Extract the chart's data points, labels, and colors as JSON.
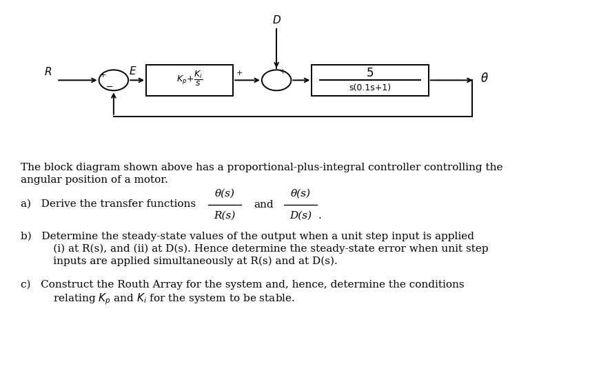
{
  "bg_color": "#ffffff",
  "fig_width": 8.56,
  "fig_height": 5.54,
  "dpi": 100,
  "diagram": {
    "R_label": "R",
    "E_label": "E",
    "D_label": "D",
    "theta_label": "θ",
    "plant_box_num": "5",
    "plant_box_den": "s(0.1s+1)"
  },
  "text_lines": {
    "body1": "The block diagram shown above has a proportional-plus-integral controller controlling the",
    "body2": "angular position of a motor.",
    "part_a": "a)   Derive the transfer functions",
    "frac1_num": "θ(s)",
    "frac1_den": "R(s)",
    "and_word": "and",
    "frac2_num": "θ(s)",
    "frac2_den": "D(s)",
    "period": ".",
    "part_b1": "b)   Determine the steady-state values of the output when a unit step input is applied",
    "part_b2": "      (i) at R(s), and (ii) at D(s). Hence determine the steady-state error when unit step",
    "part_b3": "      inputs are applied simultaneously at R(s) and at D(s).",
    "part_c1": "c)   Construct the Routh Array for the system and, hence, determine the conditions",
    "part_c2": "      relating $K_p$ and $K_i$ for the system to be stable."
  }
}
